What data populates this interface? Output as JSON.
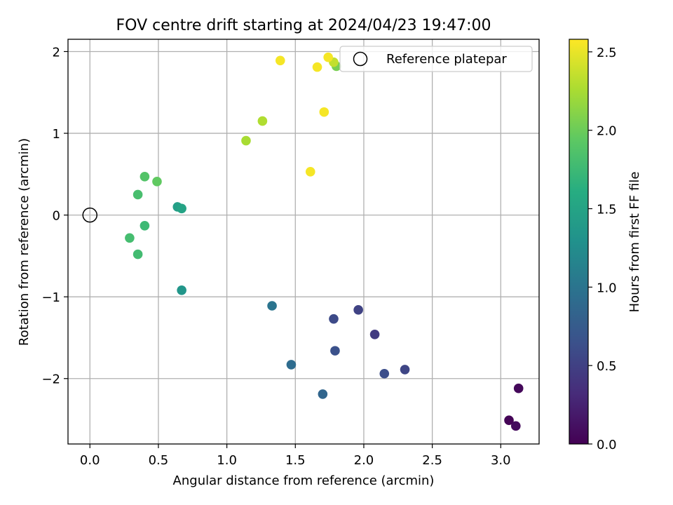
{
  "chart_data": {
    "type": "scatter",
    "title": "FOV centre drift starting at 2024/04/23 19:47:00",
    "xlabel": "Angular distance from reference (arcmin)",
    "ylabel": "Rotation from reference (arcmin)",
    "xlim": [
      -0.16,
      3.28
    ],
    "ylim": [
      -2.8,
      2.15
    ],
    "xticks": [
      0.0,
      0.5,
      1.0,
      1.5,
      2.0,
      2.5,
      3.0
    ],
    "xtick_labels": [
      "0.0",
      "0.5",
      "1.0",
      "1.5",
      "2.0",
      "2.5",
      "3.0"
    ],
    "yticks": [
      -2,
      -1,
      0,
      1,
      2
    ],
    "ytick_labels": [
      "−2",
      "−1",
      "0",
      "1",
      "2"
    ],
    "grid": true,
    "colormap": "viridis",
    "colorbar": {
      "label": "Hours from first FF file",
      "range": [
        0.0,
        2.58
      ],
      "ticks": [
        0.0,
        0.5,
        1.0,
        1.5,
        2.0,
        2.5
      ],
      "tick_labels": [
        "0.0",
        "0.5",
        "1.0",
        "1.5",
        "2.0",
        "2.5"
      ]
    },
    "legend": {
      "position": "top-right",
      "entries": [
        "Reference platepar"
      ]
    },
    "reference": {
      "x": 0.0,
      "y": 0.0
    },
    "points": [
      {
        "x": 3.13,
        "y": -2.12,
        "c": 0.05
      },
      {
        "x": 3.06,
        "y": -2.51,
        "c": 0.02
      },
      {
        "x": 3.11,
        "y": -2.58,
        "c": 0.08
      },
      {
        "x": 2.3,
        "y": -1.89,
        "c": 0.55
      },
      {
        "x": 2.15,
        "y": -1.94,
        "c": 0.62
      },
      {
        "x": 2.08,
        "y": -1.46,
        "c": 0.45
      },
      {
        "x": 1.96,
        "y": -1.16,
        "c": 0.52
      },
      {
        "x": 1.78,
        "y": -1.27,
        "c": 0.58
      },
      {
        "x": 1.79,
        "y": -1.66,
        "c": 0.65
      },
      {
        "x": 1.7,
        "y": -2.19,
        "c": 0.85
      },
      {
        "x": 1.47,
        "y": -1.83,
        "c": 0.92
      },
      {
        "x": 1.33,
        "y": -1.11,
        "c": 1.0
      },
      {
        "x": 0.67,
        "y": -0.92,
        "c": 1.35
      },
      {
        "x": 0.64,
        "y": 0.1,
        "c": 1.45
      },
      {
        "x": 0.67,
        "y": 0.08,
        "c": 1.5
      },
      {
        "x": 0.4,
        "y": -0.13,
        "c": 1.75
      },
      {
        "x": 0.35,
        "y": -0.48,
        "c": 1.78
      },
      {
        "x": 0.29,
        "y": -0.28,
        "c": 1.8
      },
      {
        "x": 0.35,
        "y": 0.25,
        "c": 1.82
      },
      {
        "x": 0.4,
        "y": 0.47,
        "c": 1.88
      },
      {
        "x": 0.49,
        "y": 0.41,
        "c": 1.95
      },
      {
        "x": 1.14,
        "y": 0.91,
        "c": 2.25
      },
      {
        "x": 1.26,
        "y": 1.15,
        "c": 2.28
      },
      {
        "x": 1.8,
        "y": 1.82,
        "c": 2.05
      },
      {
        "x": 1.78,
        "y": 1.87,
        "c": 2.35
      },
      {
        "x": 1.39,
        "y": 1.89,
        "c": 2.55
      },
      {
        "x": 1.66,
        "y": 1.81,
        "c": 2.55
      },
      {
        "x": 1.74,
        "y": 1.93,
        "c": 2.55
      },
      {
        "x": 1.71,
        "y": 1.26,
        "c": 2.55
      },
      {
        "x": 1.61,
        "y": 0.53,
        "c": 2.55
      }
    ]
  }
}
